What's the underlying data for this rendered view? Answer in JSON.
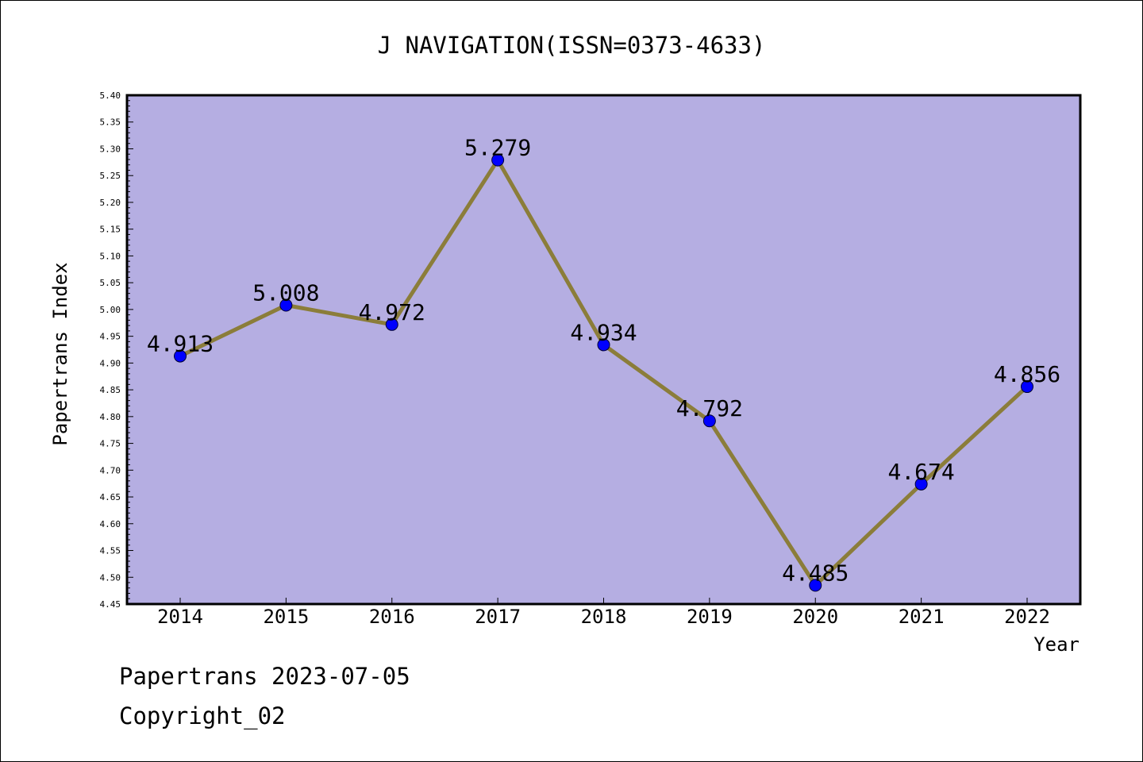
{
  "chart_data": {
    "type": "line",
    "title": "J NAVIGATION(ISSN=0373-4633)",
    "xlabel": "Year",
    "ylabel": "Papertrans Index",
    "categories": [
      "2014",
      "2015",
      "2016",
      "2017",
      "2018",
      "2019",
      "2020",
      "2021",
      "2022"
    ],
    "values": [
      4.913,
      5.008,
      4.972,
      5.279,
      4.934,
      4.792,
      4.485,
      4.674,
      4.856
    ],
    "value_labels": [
      "4.913",
      "5.008",
      "4.972",
      "5.279",
      "4.934",
      "4.792",
      "4.485",
      "4.674",
      "4.856"
    ],
    "ylim": [
      4.45,
      5.4
    ],
    "yticks": [
      "4.45",
      "4.50",
      "4.55",
      "4.60",
      "4.65",
      "4.70",
      "4.75",
      "4.80",
      "4.85",
      "4.90",
      "4.95",
      "5.00",
      "5.05",
      "5.10",
      "5.15",
      "5.20",
      "5.25",
      "5.30",
      "5.35",
      "5.40"
    ],
    "grid": false,
    "colors": {
      "plot_background": "#b5aee2",
      "line": "#8b7d3a",
      "marker": "#0000ff",
      "axis": "#000000"
    }
  },
  "footer": {
    "date_line": "Papertrans 2023-07-05",
    "copyright": "Copyright_02"
  }
}
